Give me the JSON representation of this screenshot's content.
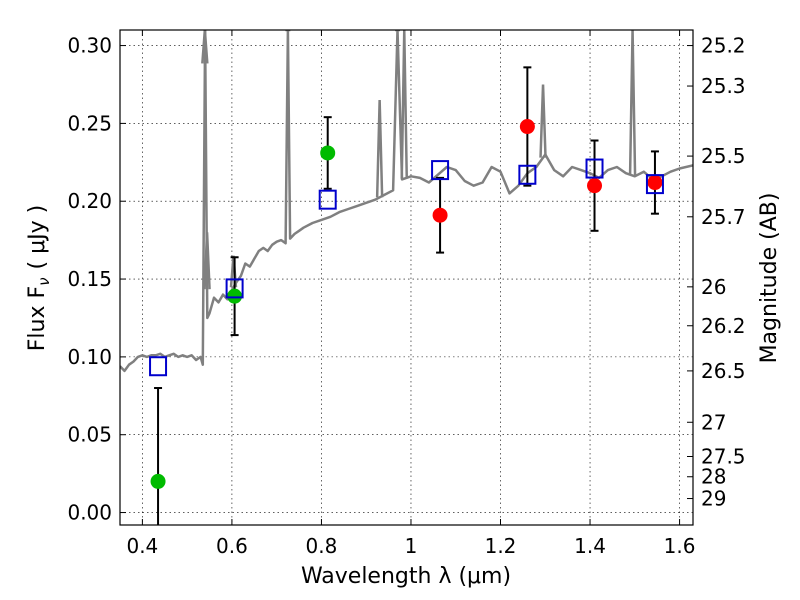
{
  "chart_data": {
    "type": "scatter",
    "xlabel": "Wavelength  λ (μm)",
    "ylabel": "Flux  F",
    "ylabel_sub": "ν",
    "ylabel_unit": "( μJy )",
    "y2label": "Magnitude (AB)",
    "xlim": [
      0.35,
      1.63
    ],
    "ylim": [
      -0.008,
      0.31
    ],
    "xticks": [
      0.4,
      0.6,
      0.8,
      1.0,
      1.2,
      1.4,
      1.6
    ],
    "xtick_labels": [
      "0.4",
      "0.6",
      "0.8",
      "1",
      "1.2",
      "1.4",
      "1.6"
    ],
    "yticks": [
      0.0,
      0.05,
      0.1,
      0.15,
      0.2,
      0.25,
      0.3
    ],
    "ytick_labels": [
      "0.00",
      "0.05",
      "0.10",
      "0.15",
      "0.20",
      "0.25",
      "0.30"
    ],
    "y2ticks": [
      {
        "label": "25.2",
        "flux": 0.3
      },
      {
        "label": "25.3",
        "flux": 0.274
      },
      {
        "label": "25.5",
        "flux": 0.229
      },
      {
        "label": "25.7",
        "flux": 0.19
      },
      {
        "label": "26",
        "flux": 0.145
      },
      {
        "label": "26.2",
        "flux": 0.12
      },
      {
        "label": "26.5",
        "flux": 0.091
      },
      {
        "label": "27",
        "flux": 0.058
      },
      {
        "label": "27.5",
        "flux": 0.036
      },
      {
        "label": "28",
        "flux": 0.023
      },
      {
        "label": "29",
        "flux": 0.009
      }
    ],
    "grid": true,
    "colors": {
      "model": "#808080",
      "green": "#00bb00",
      "red": "#ff0000",
      "square": "#0000cc"
    },
    "model_spectrum": {
      "x": [
        0.35,
        0.36,
        0.37,
        0.38,
        0.39,
        0.4,
        0.41,
        0.42,
        0.43,
        0.44,
        0.45,
        0.46,
        0.47,
        0.48,
        0.49,
        0.5,
        0.51,
        0.52,
        0.53,
        0.535,
        0.54,
        0.545,
        0.55,
        0.56,
        0.57,
        0.58,
        0.59,
        0.6,
        0.61,
        0.62,
        0.63,
        0.64,
        0.65,
        0.66,
        0.67,
        0.68,
        0.69,
        0.7,
        0.71,
        0.72,
        0.725,
        0.73,
        0.74,
        0.75,
        0.76,
        0.78,
        0.8,
        0.82,
        0.84,
        0.86,
        0.88,
        0.9,
        0.92,
        0.94,
        0.96,
        0.97,
        0.98,
        1.0,
        1.02,
        1.04,
        1.06,
        1.08,
        1.1,
        1.12,
        1.14,
        1.16,
        1.18,
        1.2,
        1.22,
        1.24,
        1.26,
        1.28,
        1.3,
        1.32,
        1.34,
        1.36,
        1.38,
        1.4,
        1.42,
        1.44,
        1.46,
        1.48,
        1.5,
        1.52,
        1.54,
        1.56,
        1.58,
        1.6,
        1.63
      ],
      "y": [
        0.094,
        0.091,
        0.095,
        0.097,
        0.1,
        0.101,
        0.1,
        0.101,
        0.101,
        0.102,
        0.1,
        0.101,
        0.102,
        0.1,
        0.101,
        0.1,
        0.101,
        0.098,
        0.1,
        0.095,
        0.31,
        0.125,
        0.128,
        0.138,
        0.135,
        0.14,
        0.137,
        0.143,
        0.148,
        0.152,
        0.16,
        0.158,
        0.163,
        0.168,
        0.17,
        0.168,
        0.172,
        0.174,
        0.175,
        0.173,
        0.31,
        0.176,
        0.179,
        0.181,
        0.183,
        0.186,
        0.188,
        0.19,
        0.193,
        0.195,
        0.197,
        0.199,
        0.201,
        0.204,
        0.207,
        0.31,
        0.214,
        0.216,
        0.215,
        0.212,
        0.217,
        0.222,
        0.22,
        0.213,
        0.21,
        0.212,
        0.222,
        0.219,
        0.205,
        0.21,
        0.218,
        0.222,
        0.23,
        0.22,
        0.216,
        0.222,
        0.22,
        0.218,
        0.215,
        0.22,
        0.222,
        0.218,
        0.216,
        0.219,
        0.214,
        0.216,
        0.219,
        0.221,
        0.223
      ]
    },
    "spikes": [
      {
        "x": 0.5395,
        "top": 0.31
      },
      {
        "x": 0.5445,
        "top": 0.18
      },
      {
        "x": 0.725,
        "top": 0.31
      },
      {
        "x": 0.6035,
        "top": 0.165
      },
      {
        "x": 0.93,
        "top": 0.265
      },
      {
        "x": 0.97,
        "top": 0.31
      },
      {
        "x": 0.985,
        "top": 0.31
      },
      {
        "x": 1.295,
        "top": 0.275
      },
      {
        "x": 1.495,
        "top": 0.31
      }
    ],
    "series": [
      {
        "marker": "circle",
        "color": "green",
        "points": [
          {
            "x": 0.435,
            "y": 0.02,
            "err_lo": 0.06,
            "err_hi": 0.06
          },
          {
            "x": 0.606,
            "y": 0.139,
            "err_lo": 0.025,
            "err_hi": 0.025
          },
          {
            "x": 0.814,
            "y": 0.231,
            "err_lo": 0.023,
            "err_hi": 0.023
          }
        ]
      },
      {
        "marker": "circle",
        "color": "red",
        "points": [
          {
            "x": 1.065,
            "y": 0.191,
            "err_lo": 0.024,
            "err_hi": 0.024
          },
          {
            "x": 1.26,
            "y": 0.248,
            "err_lo": 0.038,
            "err_hi": 0.038
          },
          {
            "x": 1.41,
            "y": 0.21,
            "err_lo": 0.029,
            "err_hi": 0.029
          },
          {
            "x": 1.545,
            "y": 0.212,
            "err_lo": 0.02,
            "err_hi": 0.02
          }
        ]
      },
      {
        "marker": "square",
        "color": "square",
        "points": [
          {
            "x": 0.435,
            "y": 0.094
          },
          {
            "x": 0.606,
            "y": 0.144
          },
          {
            "x": 0.814,
            "y": 0.201
          },
          {
            "x": 1.065,
            "y": 0.22
          },
          {
            "x": 1.26,
            "y": 0.217
          },
          {
            "x": 1.41,
            "y": 0.221
          },
          {
            "x": 1.545,
            "y": 0.211
          }
        ]
      }
    ]
  }
}
